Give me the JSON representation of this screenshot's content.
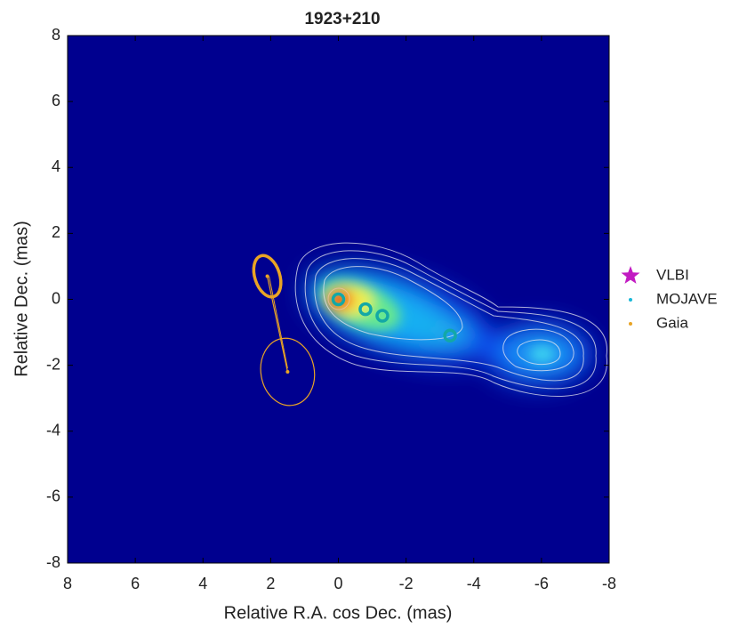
{
  "chart_data": {
    "type": "scatter",
    "title": "1923+210",
    "x_label": "Relative R.A. cos Dec. (mas)",
    "y_label": "Relative Dec. (mas)",
    "xlim": [
      8,
      -8
    ],
    "ylim": [
      -8,
      8
    ],
    "xticks": [
      8,
      6,
      4,
      2,
      0,
      -2,
      -4,
      -6,
      -8
    ],
    "yticks": [
      -8,
      -6,
      -4,
      -2,
      0,
      2,
      4,
      6,
      8
    ],
    "series": [
      {
        "name": "VLBI",
        "color": "#c21bc2",
        "marker": "star",
        "x": [],
        "values": []
      },
      {
        "name": "MOJAVE",
        "color": "#13a8a6",
        "marker": "ring",
        "x": [
          0,
          -0.8,
          -1.3,
          -3.3
        ],
        "values": [
          0,
          -0.3,
          -0.5,
          -1.1
        ]
      },
      {
        "name": "Gaia",
        "color": "#e9a425",
        "marker": "dot",
        "x": [
          2.1,
          1.5
        ],
        "values": [
          0.7,
          -2.2
        ]
      }
    ]
  }
}
